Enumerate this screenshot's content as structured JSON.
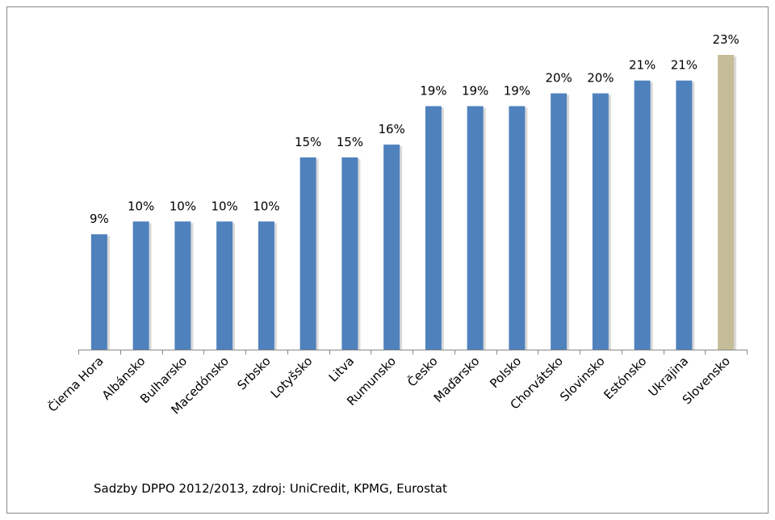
{
  "chart_data": {
    "type": "bar",
    "categories": [
      "Čierna Hora",
      "Albánsko",
      "Bulharsko",
      "Macedónsko",
      "Srbsko",
      "Lotyšsko",
      "Litva",
      "Rumunsko",
      "Česko",
      "Maďarsko",
      "Polsko",
      "Chorvátsko",
      "Slovinsko",
      "Estónsko",
      "Ukrajina",
      "Slovensko"
    ],
    "values": [
      9,
      10,
      10,
      10,
      10,
      15,
      15,
      16,
      19,
      19,
      19,
      20,
      20,
      21,
      21,
      23
    ],
    "value_labels": [
      "9%",
      "10%",
      "10%",
      "10%",
      "10%",
      "15%",
      "15%",
      "16%",
      "19%",
      "19%",
      "19%",
      "20%",
      "20%",
      "21%",
      "21%",
      "23%"
    ],
    "colors": [
      "#4f81bd",
      "#4f81bd",
      "#4f81bd",
      "#4f81bd",
      "#4f81bd",
      "#4f81bd",
      "#4f81bd",
      "#4f81bd",
      "#4f81bd",
      "#4f81bd",
      "#4f81bd",
      "#4f81bd",
      "#4f81bd",
      "#4f81bd",
      "#4f81bd",
      "#c4bd97"
    ],
    "source": "Sadzby DPPO 2012/2013, zdroj: UniCredit, KPMG, Eurostat"
  }
}
